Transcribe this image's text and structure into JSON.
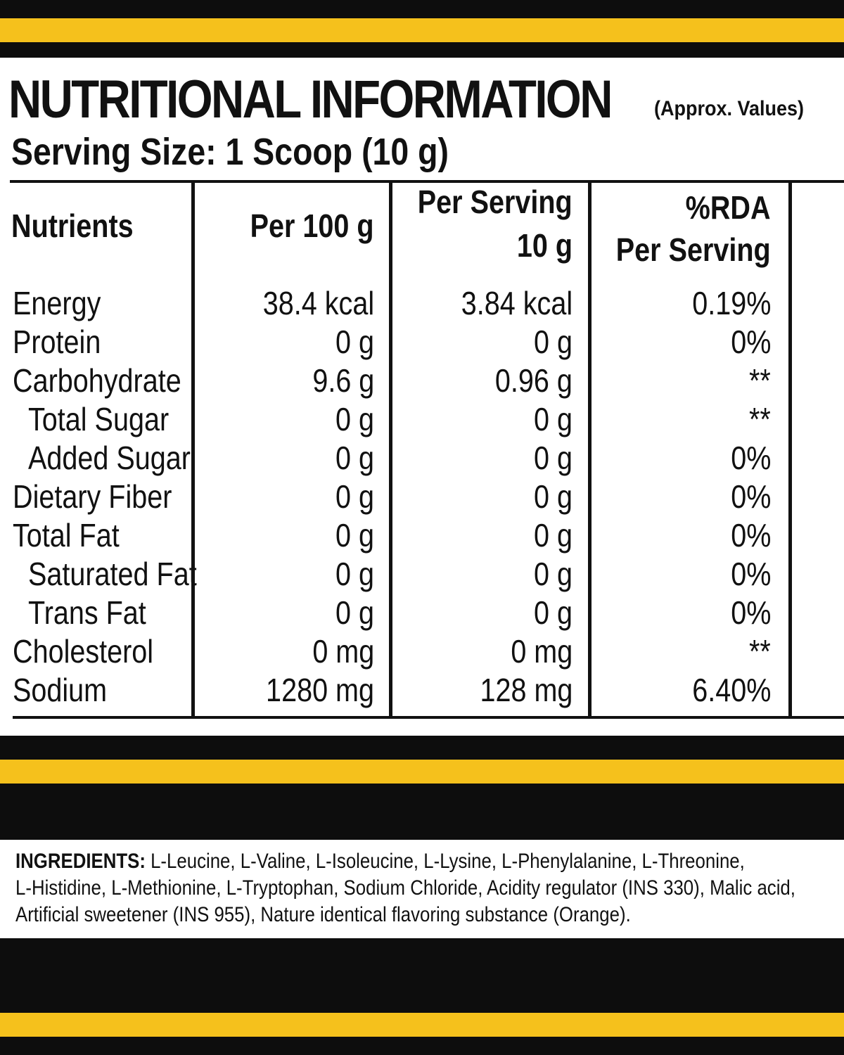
{
  "colors": {
    "yellow": "#f5c11c",
    "black": "#0d0d0d"
  },
  "header": {
    "title": "NUTRITIONAL INFORMATION",
    "approx": "(Approx. Values)",
    "serving_size": "Serving Size: 1 Scoop (10 g)"
  },
  "table": {
    "headers": {
      "nutrients": "Nutrients",
      "per100": "Per 100 g",
      "per_serving_line1": "Per Serving",
      "per_serving_line2": "10 g",
      "rda_line1": "%RDA",
      "rda_line2": "Per Serving"
    },
    "rows": [
      {
        "name": "Energy",
        "per100": "38.4 kcal",
        "serving": "3.84 kcal",
        "rda": "0.19%"
      },
      {
        "name": "Protein",
        "per100": "0 g",
        "serving": "0 g",
        "rda": "0%"
      },
      {
        "name": "Carbohydrate",
        "per100": "9.6 g",
        "serving": "0.96 g",
        "rda": "**"
      },
      {
        "name": "Total Sugar",
        "per100": "0 g",
        "serving": "0 g",
        "rda": "**"
      },
      {
        "name": "Added Sugar",
        "per100": "0 g",
        "serving": "0 g",
        "rda": "0%"
      },
      {
        "name": "Dietary Fiber",
        "per100": "0 g",
        "serving": "0 g",
        "rda": "0%"
      },
      {
        "name": "Total Fat",
        "per100": "0 g",
        "serving": "0 g",
        "rda": "0%"
      },
      {
        "name": "Saturated Fat",
        "per100": "0 g",
        "serving": "0 g",
        "rda": "0%"
      },
      {
        "name": "Trans Fat",
        "per100": "0 g",
        "serving": "0 g",
        "rda": "0%"
      },
      {
        "name": "Cholesterol",
        "per100": "0 mg",
        "serving": "0 mg",
        "rda": "**"
      },
      {
        "name": "Sodium",
        "per100": "1280 mg",
        "serving": "128 mg",
        "rda": "6.40%"
      }
    ]
  },
  "ingredients": {
    "label": "INGREDIENTS:",
    "line1": " L-Leucine, L-Valine, L-Isoleucine, L-Lysine, L-Phenylalanine, L-Threonine,",
    "line2": "L-Histidine, L-Methionine, L-Tryptophan, Sodium Chloride, Acidity regulator (INS  330), Malic acid,",
    "line3": "Artificial sweetener (INS 955), Nature identical flavoring substance (Orange)."
  }
}
